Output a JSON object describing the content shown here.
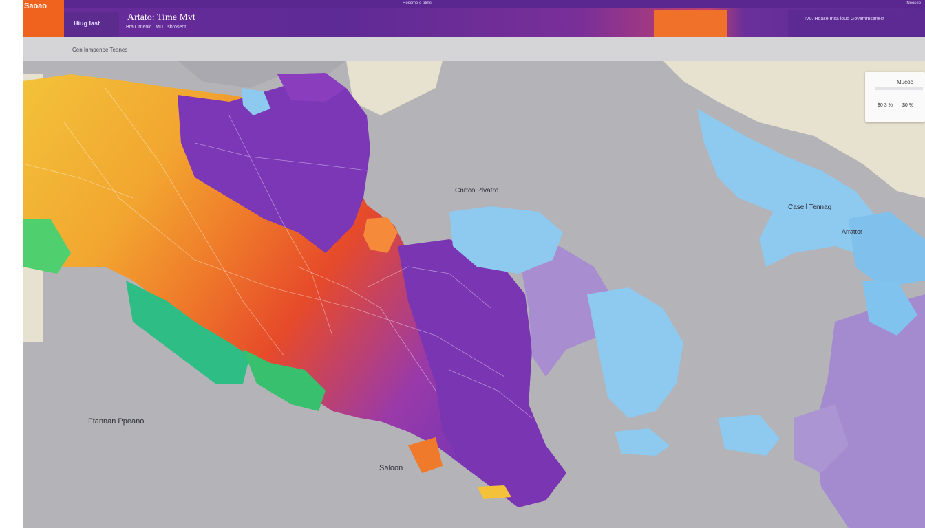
{
  "brand": {
    "label": "Saoao"
  },
  "header": {
    "left_tab": "Hiug Iast",
    "title": "Artato: Time Mvt",
    "subtitle": "Bra Ornenic . MIT. Isbrosent",
    "top_center": "Rosome o tdine",
    "top_right": "Nooseo",
    "right_panel": "IV0. Hoase Insa loud Govemmsenect"
  },
  "toolbar": {
    "label": "Cen Inmpenoe Teanes"
  },
  "info_card": {
    "title": "Mucoc",
    "row_left": "$0 3 %",
    "row_right": "$0 %"
  },
  "map_labels": {
    "caspian": "Cnrtco Plvatro",
    "east_sea": "Casell Tennag",
    "east_sea_sub": "Arrattor",
    "south_label": "Ftannan Ppeano",
    "bottom_label": "Saloon"
  },
  "colors": {
    "yellow": "#f1b233",
    "orange": "#f07a2c",
    "red": "#e64a2a",
    "purple": "#7b37b6",
    "lavender": "#a88ed0",
    "light_blue": "#8ec9ef",
    "green": "#31c08a",
    "land_gray": "#b3b3b8",
    "land_beige": "#e7e1cf"
  }
}
